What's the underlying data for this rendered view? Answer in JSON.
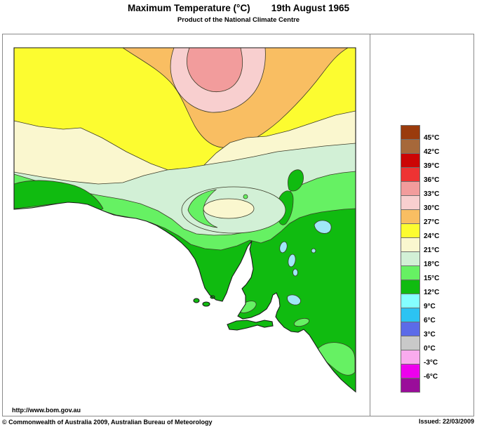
{
  "title": {
    "main": "Maximum Temperature (°C)",
    "date": "19th August 1965",
    "subtitle": "Product of the National Climate Centre"
  },
  "legend": {
    "entries": [
      {
        "color": "#9A3B0C",
        "label": "45°C"
      },
      {
        "color": "#A6683A",
        "label": "42°C"
      },
      {
        "color": "#CC0505",
        "label": "39°C"
      },
      {
        "color": "#EE3333",
        "label": "36°C"
      },
      {
        "color": "#F29C9C",
        "label": "33°C"
      },
      {
        "color": "#F8CFCF",
        "label": "30°C"
      },
      {
        "color": "#F9BE62",
        "label": "27°C"
      },
      {
        "color": "#FCFC30",
        "label": "24°C"
      },
      {
        "color": "#FAF7CF",
        "label": "21°C"
      },
      {
        "color": "#D2F0D6",
        "label": "18°C"
      },
      {
        "color": "#66F163",
        "label": "15°C"
      },
      {
        "color": "#10BB10",
        "label": "12°C"
      },
      {
        "color": "#85FFFF",
        "label": "9°C"
      },
      {
        "color": "#2CC3F2",
        "label": "6°C"
      },
      {
        "color": "#5C6BE8",
        "label": "3°C"
      },
      {
        "color": "#C9C9C9",
        "label": "0°C"
      },
      {
        "color": "#F9ABEE",
        "label": "-3°C"
      },
      {
        "color": "#EE00EE",
        "label": "-6°C"
      },
      {
        "color": "#9A0D9A",
        "label": ""
      }
    ]
  },
  "map": {
    "band_colors_visible": {
      "33-36C": "#F29C9C",
      "30-33C": "#F8CFCF",
      "27-30C": "#F9BE62",
      "24-27C": "#FCFC30",
      "21-24C": "#FAF7CF",
      "18-21C": "#D2F0D6",
      "15-18C": "#66F163",
      "12-15C": "#10BB10"
    },
    "lake_color": "#9FE7F7",
    "sea_color": "#FFFFFF"
  },
  "footer": {
    "url": "http://www.bom.gov.au",
    "copyright": "© Commonwealth of Australia 2009, Australian Bureau of Meteorology",
    "issued": "Issued: 22/03/2009"
  }
}
